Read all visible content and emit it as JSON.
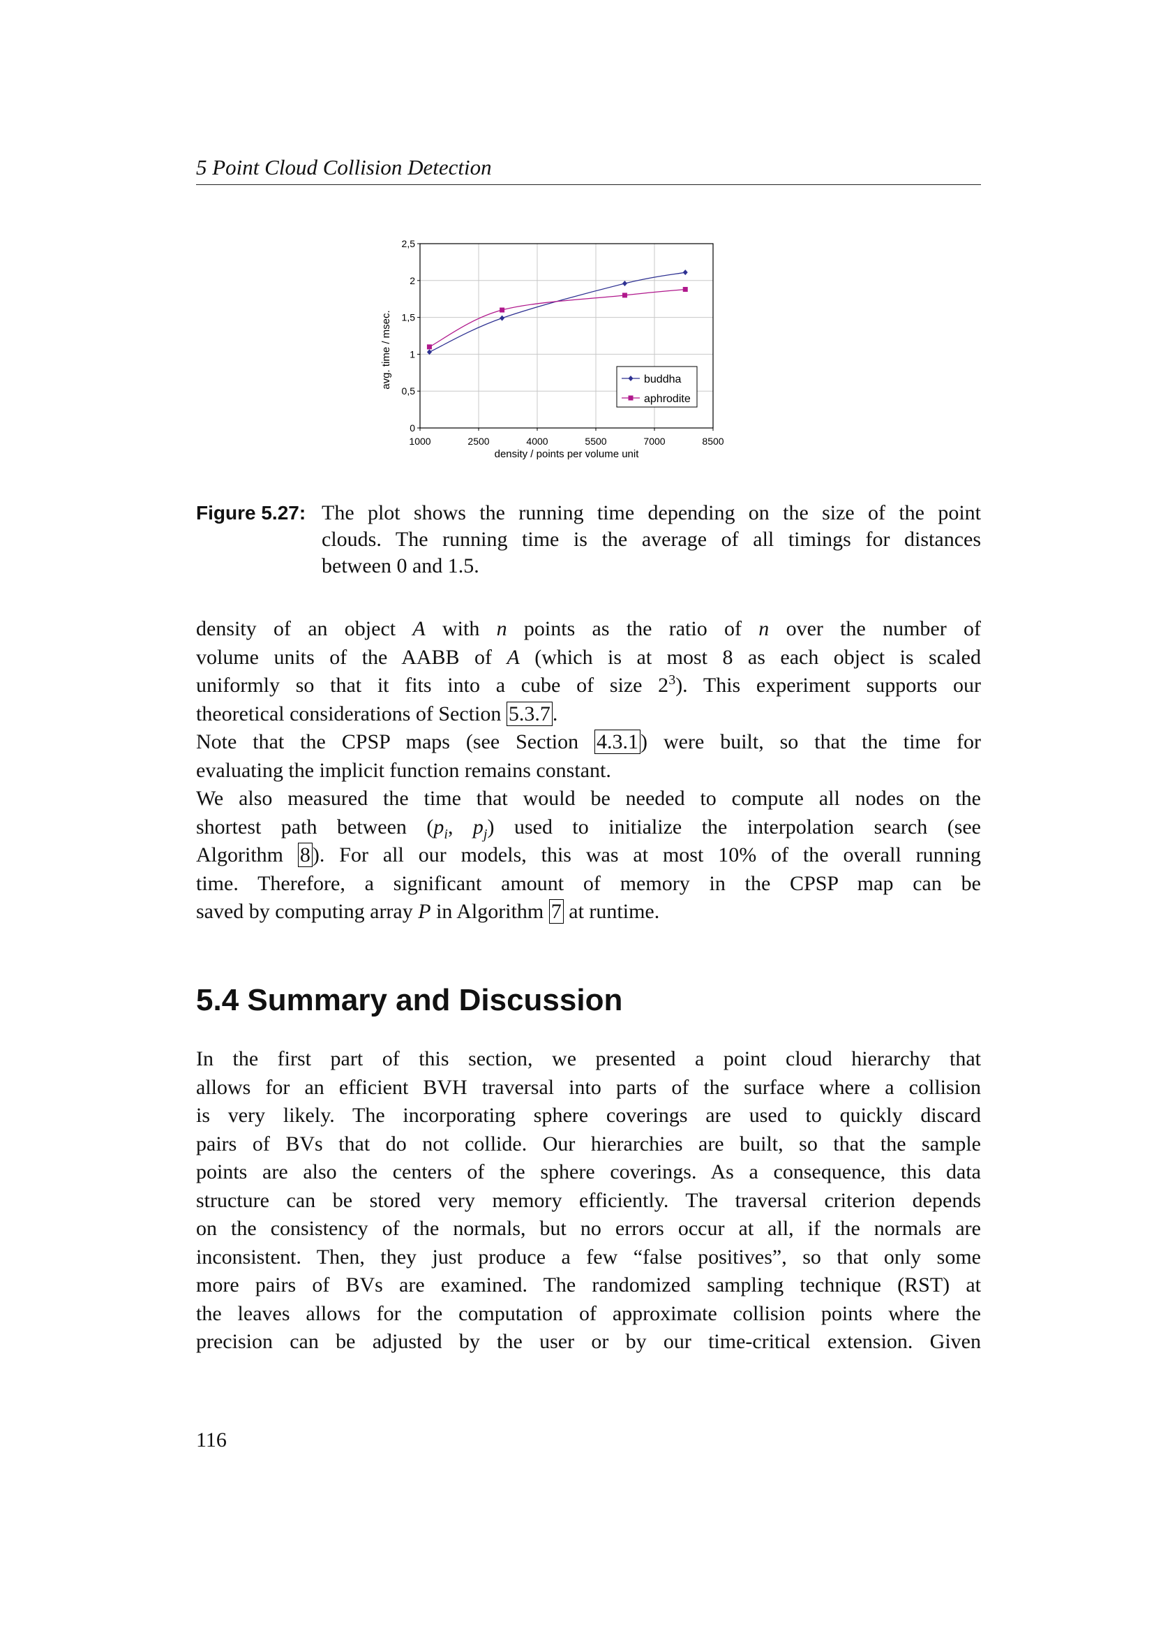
{
  "header": {
    "running_title": "5 Point Cloud Collision Detection"
  },
  "chart_data": {
    "type": "line",
    "xlabel": "density / points per volume unit",
    "ylabel": "avg. time / msec.",
    "xlim": [
      1000,
      8500
    ],
    "ylim": [
      0,
      2.5
    ],
    "xticks": [
      "1000",
      "2500",
      "4000",
      "5500",
      "7000",
      "8500"
    ],
    "yticks": [
      "0",
      "0,5",
      "1",
      "1,5",
      "2",
      "2,5"
    ],
    "grid": true,
    "legend_placement": "bottom-right",
    "series": [
      {
        "name": "buddha",
        "color": "#2e3192",
        "marker": "diamond",
        "x": [
          1240,
          3100,
          6240,
          7790
        ],
        "y": [
          1.03,
          1.49,
          1.96,
          2.11
        ]
      },
      {
        "name": "aphrodite",
        "color": "#b0188c",
        "marker": "square",
        "x": [
          1240,
          3100,
          6240,
          7790
        ],
        "y": [
          1.1,
          1.6,
          1.8,
          1.88
        ]
      }
    ]
  },
  "caption": {
    "label": "Figure 5.27:",
    "lines": [
      "The plot shows the running time depending on the size of the point",
      "clouds.  The running time is the average of all timings for distances",
      "between 0 and 1.5."
    ]
  },
  "body": {
    "paragraphs": [
      [
        [
          {
            "t": "density of an object "
          },
          {
            "t": "A",
            "s": "i"
          },
          {
            "t": " with "
          },
          {
            "t": "n",
            "s": "i"
          },
          {
            "t": " points as the ratio of "
          },
          {
            "t": "n",
            "s": "i"
          },
          {
            "t": " over the number of"
          }
        ],
        [
          {
            "t": "volume units of the AABB of "
          },
          {
            "t": "A",
            "s": "i"
          },
          {
            "t": " (which is at most 8 as each object is scaled"
          }
        ],
        [
          {
            "t": "uniformly so that it fits into a cube of size 2"
          },
          {
            "t": "3",
            "s": "sup"
          },
          {
            "t": ").  This experiment supports our"
          }
        ],
        [
          {
            "t": "theoretical considerations of Section "
          },
          {
            "t": "5.3.7",
            "s": "box"
          },
          {
            "t": "."
          }
        ]
      ],
      [
        [
          {
            "t": "Note that the CPSP maps (see Section "
          },
          {
            "t": "4.3.1",
            "s": "box"
          },
          {
            "t": ") were built, so that the time for"
          }
        ],
        [
          {
            "t": "evaluating the implicit function remains constant."
          }
        ]
      ],
      [
        [
          {
            "t": "We also measured the time that would be needed to compute all nodes on the"
          }
        ],
        [
          {
            "t": "shortest path between ("
          },
          {
            "t": "p",
            "s": "i"
          },
          {
            "t": "i",
            "s": "sub"
          },
          {
            "t": ", "
          },
          {
            "t": "p",
            "s": "i"
          },
          {
            "t": "j",
            "s": "sub"
          },
          {
            "t": ") used to initialize the interpolation search (see"
          }
        ],
        [
          {
            "t": "Algorithm "
          },
          {
            "t": "8",
            "s": "box"
          },
          {
            "t": ").  For all our models, this was at most 10% of the overall running"
          }
        ],
        [
          {
            "t": "time.  Therefore, a significant amount of memory in the CPSP map can be"
          }
        ],
        [
          {
            "t": "saved by computing array "
          },
          {
            "t": "P",
            "s": "i"
          },
          {
            "t": " in Algorithm "
          },
          {
            "t": "7",
            "s": "box"
          },
          {
            "t": " at runtime."
          }
        ]
      ]
    ]
  },
  "section": {
    "heading": "5.4  Summary and Discussion",
    "lines": [
      "In the first part of this section, we presented a point cloud hierarchy that",
      "allows for an efficient BVH traversal into parts of the surface where a collision",
      "is very likely.  The incorporating sphere coverings are used to quickly discard",
      "pairs of BVs that do not collide.  Our hierarchies are built, so that the sample",
      "points are also the centers of the sphere coverings.  As a consequence, this data",
      "structure can be stored very memory efficiently.  The traversal criterion depends",
      "on the consistency of the normals, but no errors occur at all, if the normals are",
      "inconsistent.  Then, they just produce a few “false positives”, so that only some",
      "more pairs of BVs are examined.  The randomized sampling technique (RST) at",
      "the leaves allows for the computation of approximate collision points where the",
      "precision can be adjusted by the user or by our time-critical extension.  Given"
    ]
  },
  "page_number": "116"
}
